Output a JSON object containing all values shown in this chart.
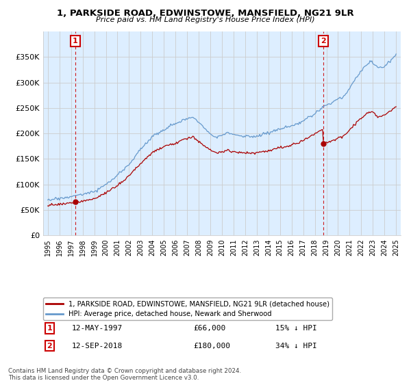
{
  "title": "1, PARKSIDE ROAD, EDWINSTOWE, MANSFIELD, NG21 9LR",
  "subtitle": "Price paid vs. HM Land Registry's House Price Index (HPI)",
  "legend_label_red": "1, PARKSIDE ROAD, EDWINSTOWE, MANSFIELD, NG21 9LR (detached house)",
  "legend_label_blue": "HPI: Average price, detached house, Newark and Sherwood",
  "annotation1_label": "1",
  "annotation1_date": "12-MAY-1997",
  "annotation1_price": "£66,000",
  "annotation1_hpi": "15% ↓ HPI",
  "annotation2_label": "2",
  "annotation2_date": "12-SEP-2018",
  "annotation2_price": "£180,000",
  "annotation2_hpi": "34% ↓ HPI",
  "sale1_x": 1997.37,
  "sale1_y": 66000,
  "sale2_x": 2018.71,
  "sale2_y": 180000,
  "footer": "Contains HM Land Registry data © Crown copyright and database right 2024.\nThis data is licensed under the Open Government Licence v3.0.",
  "ylim": [
    0,
    400000
  ],
  "xlim": [
    1994.6,
    2025.4
  ],
  "yticks": [
    0,
    50000,
    100000,
    150000,
    200000,
    250000,
    300000,
    350000
  ],
  "xticks": [
    1995,
    1996,
    1997,
    1998,
    1999,
    2000,
    2001,
    2002,
    2003,
    2004,
    2005,
    2006,
    2007,
    2008,
    2009,
    2010,
    2011,
    2012,
    2013,
    2014,
    2015,
    2016,
    2017,
    2018,
    2019,
    2020,
    2021,
    2022,
    2023,
    2024,
    2025
  ],
  "color_red": "#aa0000",
  "color_blue": "#6699cc",
  "color_grid": "#cccccc",
  "color_annotation_box": "#cc0000",
  "bg_color": "#ddeeff",
  "background_color": "#ffffff"
}
